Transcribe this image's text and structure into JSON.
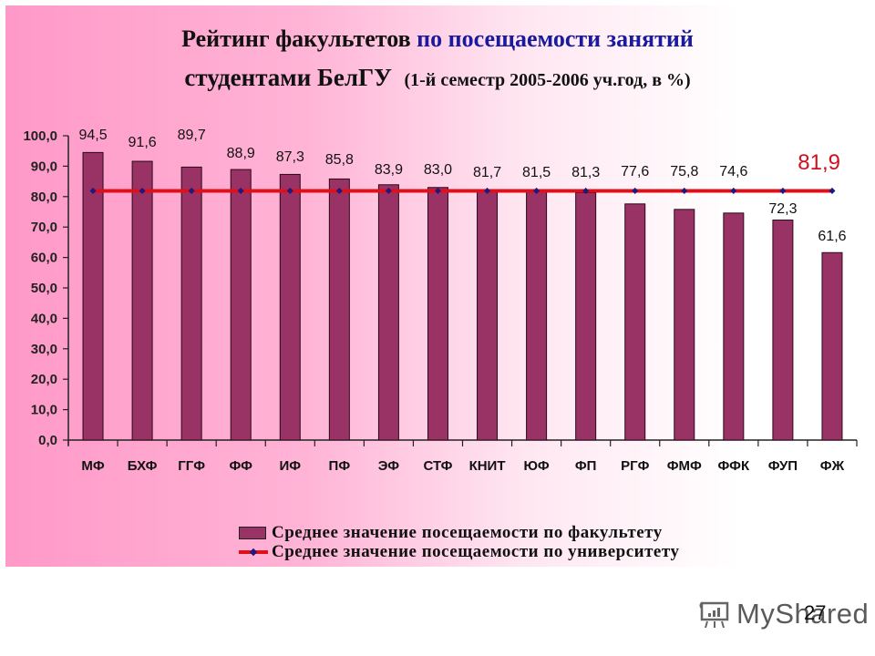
{
  "slide": {
    "title_line1_black": "Рейтинг факультетов",
    "title_line1_blue": "по посещаемости занятий",
    "title_line2_main": "студентами БелГУ",
    "title_line2_sub": "(1-й семестр 2005-2006 уч.год, в %)",
    "page_number": "27",
    "watermark": "MyShared"
  },
  "chart_data": {
    "type": "bar",
    "title": "Рейтинг факультетов по посещаемости занятий студентами БелГУ (1-й семестр 2005-2006 уч.год, в %)",
    "xlabel": "",
    "ylabel": "",
    "ylim": [
      0,
      100
    ],
    "yticks": [
      "0,0",
      "10,0",
      "20,0",
      "30,0",
      "40,0",
      "50,0",
      "60,0",
      "70,0",
      "80,0",
      "90,0",
      "100,0"
    ],
    "categories": [
      "МФ",
      "БХФ",
      "ГГФ",
      "ФФ",
      "ИФ",
      "ПФ",
      "ЭФ",
      "СТФ",
      "КНИТ",
      "ЮФ",
      "ФП",
      "РГФ",
      "ФМФ",
      "ФФК",
      "ФУП",
      "ФЖ"
    ],
    "series": [
      {
        "name": "Среднее значение посещаемости по факультету",
        "type": "bar",
        "color": "#993366",
        "values": [
          94.5,
          91.6,
          89.7,
          88.9,
          87.3,
          85.8,
          83.9,
          83.0,
          81.7,
          81.5,
          81.3,
          77.6,
          75.8,
          74.6,
          72.3,
          61.6
        ],
        "labels": [
          "94,5",
          "91,6",
          "89,7",
          "88,9",
          "87,3",
          "85,8",
          "83,9",
          "83,0",
          "81,7",
          "81,5",
          "81,3",
          "77,6",
          "75,8",
          "74,6",
          "72,3",
          "61,6"
        ]
      },
      {
        "name": "Среднее значение посещаемости по университету",
        "type": "line",
        "color": "#e0101a",
        "values": [
          81.9,
          81.9,
          81.9,
          81.9,
          81.9,
          81.9,
          81.9,
          81.9,
          81.9,
          81.9,
          81.9,
          81.9,
          81.9,
          81.9,
          81.9,
          81.9
        ],
        "label": "81,9"
      }
    ],
    "legend_position": "bottom",
    "grid": false
  }
}
